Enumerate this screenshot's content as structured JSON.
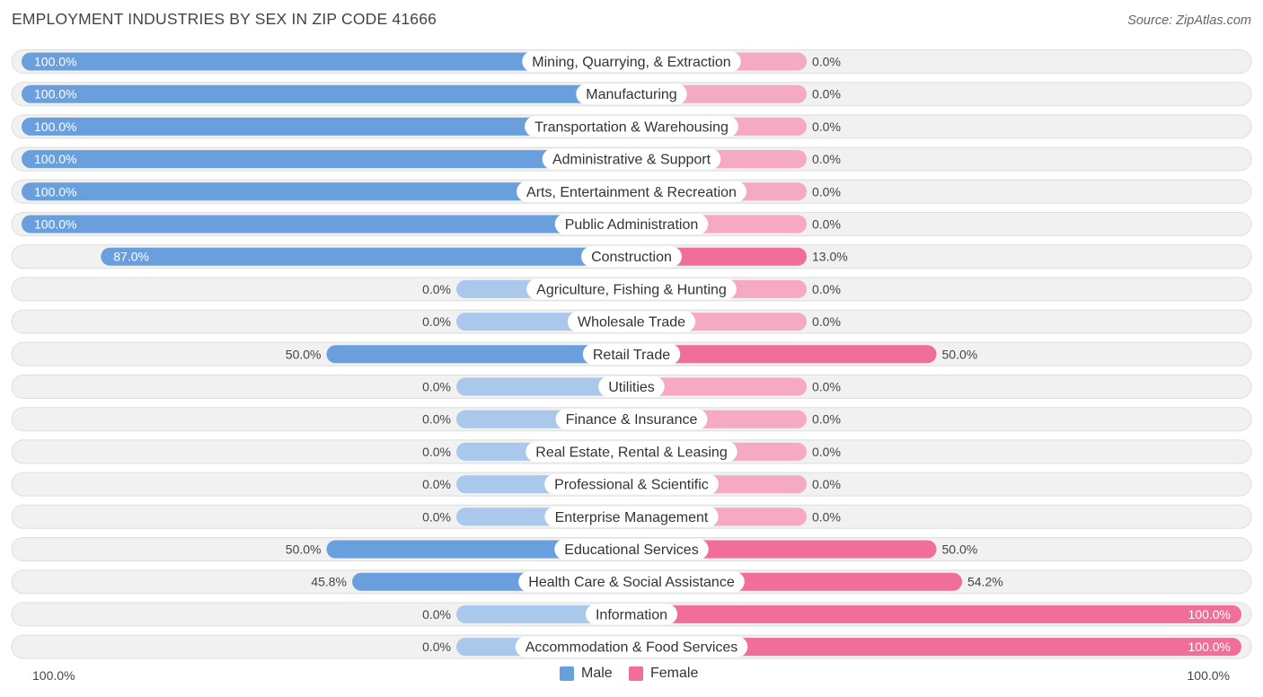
{
  "title": "EMPLOYMENT INDUSTRIES BY SEX IN ZIP CODE 41666",
  "source": "Source: ZipAtlas.com",
  "colors": {
    "male_strong": "#6a9fdd",
    "male_light": "#aac8ec",
    "female_strong": "#f06e99",
    "female_light": "#f6a9c3",
    "row_bg": "#f1f1f1",
    "row_border": "#dedede"
  },
  "legend": {
    "male": "Male",
    "female": "Female"
  },
  "axis": {
    "left": "100.0%",
    "right": "100.0%"
  },
  "chart_data": {
    "type": "bar",
    "orientation": "horizontal-diverging",
    "title": "EMPLOYMENT INDUSTRIES BY SEX IN ZIP CODE 41666",
    "xlim": [
      -100,
      100
    ],
    "categories": [
      "Mining, Quarrying, & Extraction",
      "Manufacturing",
      "Transportation & Warehousing",
      "Administrative & Support",
      "Arts, Entertainment & Recreation",
      "Public Administration",
      "Construction",
      "Agriculture, Fishing & Hunting",
      "Wholesale Trade",
      "Retail Trade",
      "Utilities",
      "Finance & Insurance",
      "Real Estate, Rental & Leasing",
      "Professional & Scientific",
      "Enterprise Management",
      "Educational Services",
      "Health Care & Social Assistance",
      "Information",
      "Accommodation & Food Services"
    ],
    "series": [
      {
        "name": "Male",
        "values": [
          100,
          100,
          100,
          100,
          100,
          100,
          87,
          0,
          0,
          50,
          0,
          0,
          0,
          0,
          0,
          50,
          45.8,
          0,
          0
        ],
        "labels": [
          "100.0%",
          "100.0%",
          "100.0%",
          "100.0%",
          "100.0%",
          "100.0%",
          "87.0%",
          "0.0%",
          "0.0%",
          "50.0%",
          "0.0%",
          "0.0%",
          "0.0%",
          "0.0%",
          "0.0%",
          "50.0%",
          "45.8%",
          "0.0%",
          "0.0%"
        ]
      },
      {
        "name": "Female",
        "values": [
          0,
          0,
          0,
          0,
          0,
          0,
          13,
          0,
          0,
          50,
          0,
          0,
          0,
          0,
          0,
          50,
          54.2,
          100,
          100
        ],
        "labels": [
          "0.0%",
          "0.0%",
          "0.0%",
          "0.0%",
          "0.0%",
          "0.0%",
          "13.0%",
          "0.0%",
          "0.0%",
          "50.0%",
          "0.0%",
          "0.0%",
          "0.0%",
          "0.0%",
          "0.0%",
          "50.0%",
          "54.2%",
          "100.0%",
          "100.0%"
        ]
      }
    ]
  }
}
